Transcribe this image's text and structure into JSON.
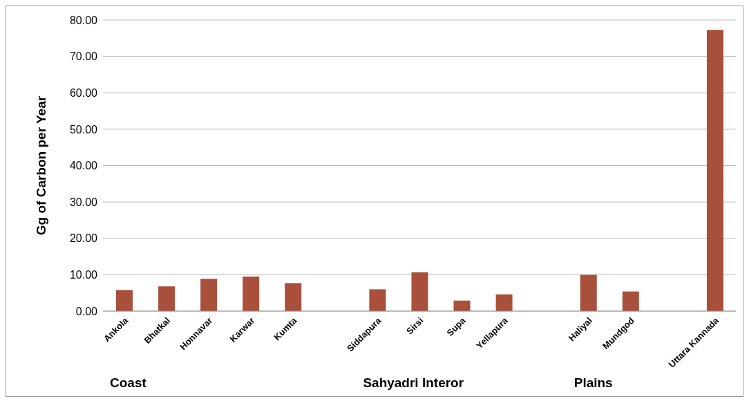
{
  "chart_data": {
    "type": "bar",
    "ylabel": "Gg of Carbon per Year",
    "categories": [
      "Ankola",
      "Bhatkal",
      "Honnavar",
      "Karwar",
      "Kumta",
      null,
      "Siddapura",
      "Sirsi",
      "Supa",
      "Yellapura",
      null,
      "Haliyal",
      "Mundgod",
      null,
      "Uttara Kannada"
    ],
    "values": [
      5.8,
      6.8,
      8.9,
      9.5,
      7.7,
      null,
      6.0,
      10.7,
      2.9,
      4.6,
      null,
      10.0,
      5.4,
      null,
      77.3
    ],
    "color": "#a8503c",
    "ylim": [
      0,
      80
    ],
    "yticks": [
      {
        "value": 0,
        "label": "0.00"
      },
      {
        "value": 10,
        "label": "10.00"
      },
      {
        "value": 20,
        "label": "20.00"
      },
      {
        "value": 30,
        "label": "30.00"
      },
      {
        "value": 40,
        "label": "40.00"
      },
      {
        "value": 50,
        "label": "50.00"
      },
      {
        "value": 60,
        "label": "60.00"
      },
      {
        "value": 70,
        "label": "70.00"
      },
      {
        "value": 80,
        "label": "80.00"
      }
    ],
    "grid": "y",
    "annotations": [
      "Coast",
      "Sahyadri Interor",
      "Plains"
    ]
  }
}
